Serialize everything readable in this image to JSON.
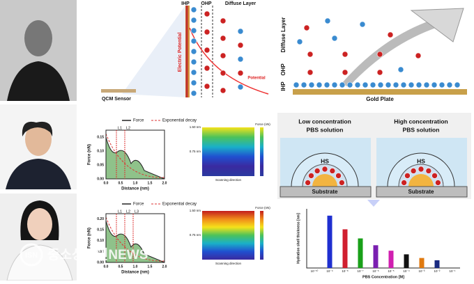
{
  "header_diagram": {
    "ihp": "IHP",
    "ohp": "OHP",
    "diffuse": "Diffuse Layer",
    "electric_potential": "Electric Potential",
    "potential": "Potential",
    "sensor": "QCM Sensor"
  },
  "gold_diagram": {
    "diffuse": "Diffuse Layer",
    "ohp": "OHP",
    "ihp": "IHP",
    "plate": "Gold Plate"
  },
  "force_plots": [
    {
      "legend": [
        "Force",
        "Exponential decay"
      ],
      "y_label": "Force (nN)",
      "x_label": "Distance (nm)",
      "markers": [
        "L1",
        "L2"
      ],
      "yticks": [
        "0.00",
        "0.05",
        "0.10",
        "0.15"
      ],
      "xticks": [
        "0.0",
        "0.5",
        "1.0",
        "1.5",
        "2.0"
      ],
      "map": {
        "top": "1.50 nm",
        "mid": "0.75 nm",
        "x_label": "Scanning direction",
        "colorbar": "Force (nN)"
      }
    },
    {
      "legend": [
        "Force",
        "Exponential decay"
      ],
      "y_label": "Force (nN)",
      "x_label": "Distance (nm)",
      "markers": [
        "L1",
        "L2",
        "L3"
      ],
      "yticks": [
        "0.00",
        "0.05",
        "0.10",
        "0.15",
        "0.20"
      ],
      "xticks": [
        "0.0",
        "0.5",
        "1.0",
        "1.5",
        "2.0"
      ],
      "map": {
        "top": "1.50 nm",
        "mid": "0.75 nm",
        "x_label": "Scanning direction",
        "colorbar": "Force (nN)"
      }
    }
  ],
  "schematic": {
    "panels": [
      {
        "title": [
          "Low concentration",
          "PBS solution"
        ],
        "shell": "HS",
        "base": "Substrate"
      },
      {
        "title": [
          "High concentration",
          "PBS solution"
        ],
        "shell": "HS",
        "base": "Substrate"
      }
    ]
  },
  "chart_data": {
    "type": "bar",
    "x_label": "PBS Concentration [M]",
    "y_label": "Hydration shell thickness [nm]",
    "categories": [
      "10⁻¹⁰",
      "10⁻⁹",
      "10⁻⁸",
      "10⁻⁷",
      "10⁻⁶",
      "10⁻⁵",
      "10⁻⁴",
      "10⁻³",
      "10⁻²",
      "10⁻¹"
    ],
    "values": [
      null,
      1.15,
      0.85,
      0.65,
      0.5,
      0.38,
      0.3,
      0.22,
      0.17,
      null
    ],
    "colors": [
      "#000",
      "#1f2fd0",
      "#d01f2f",
      "#19a019",
      "#7a1fb0",
      "#d01fb0",
      "#111111",
      "#e07a10",
      "#1a2a80",
      "#000"
    ],
    "ylim": [
      0,
      1.3
    ]
  },
  "watermark": {
    "logo": "ISN",
    "text": "중소상공인NEWS"
  }
}
